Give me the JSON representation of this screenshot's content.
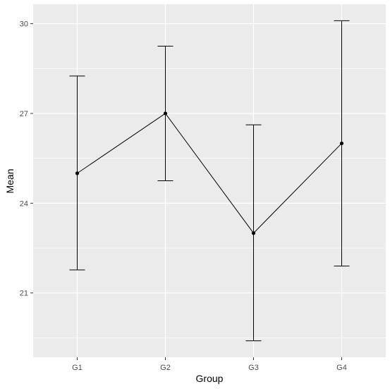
{
  "chart_data": {
    "type": "line",
    "xlabel": "Group",
    "ylabel": "Mean",
    "categories": [
      "G1",
      "G2",
      "G3",
      "G4"
    ],
    "means": [
      25.0,
      27.0,
      23.0,
      26.0
    ],
    "error_upper": [
      28.25,
      29.25,
      26.62,
      30.1
    ],
    "error_lower": [
      21.77,
      24.75,
      19.4,
      21.9
    ],
    "ylim": [
      18.85,
      30.65
    ],
    "yticks": [
      21,
      24,
      27,
      30
    ],
    "grid": true,
    "legend": "none",
    "colors": {
      "panel": "#ebebeb",
      "grid": "#ffffff",
      "line": "#000000",
      "point": "#000000"
    }
  }
}
